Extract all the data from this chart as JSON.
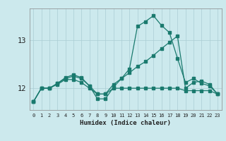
{
  "xlabel": "Humidex (Indice chaleur)",
  "background_color": "#cce9ed",
  "grid_color": "#aacdd4",
  "line_color": "#1a7a6e",
  "x_ticks": [
    0,
    1,
    2,
    3,
    4,
    5,
    6,
    7,
    8,
    9,
    10,
    11,
    12,
    13,
    14,
    15,
    16,
    17,
    18,
    19,
    20,
    21,
    22,
    23
  ],
  "y_ticks": [
    12,
    13
  ],
  "ylim": [
    11.55,
    13.65
  ],
  "xlim": [
    -0.5,
    23.5
  ],
  "series1_x": [
    0,
    1,
    2,
    3,
    4,
    5,
    6,
    7,
    8,
    9,
    10,
    11,
    12,
    13,
    14,
    15,
    16,
    17,
    18,
    19,
    20,
    21,
    22,
    23
  ],
  "series1_y": [
    11.72,
    12.0,
    12.0,
    12.08,
    12.18,
    12.18,
    12.12,
    12.0,
    11.88,
    11.88,
    12.0,
    12.0,
    12.0,
    12.0,
    12.0,
    12.0,
    12.0,
    12.0,
    12.0,
    11.95,
    11.95,
    11.95,
    11.95,
    11.88
  ],
  "series2_x": [
    0,
    1,
    2,
    3,
    4,
    5,
    6,
    7,
    8,
    9,
    10,
    11,
    12,
    13,
    14,
    15,
    16,
    17,
    18,
    19,
    20,
    21,
    22,
    23
  ],
  "series2_y": [
    11.72,
    12.0,
    12.0,
    12.1,
    12.2,
    12.25,
    12.2,
    12.05,
    11.88,
    11.88,
    12.08,
    12.2,
    12.32,
    12.45,
    12.55,
    12.68,
    12.82,
    12.95,
    13.08,
    12.0,
    12.12,
    12.15,
    12.08,
    11.88
  ],
  "series3_x": [
    0,
    1,
    2,
    3,
    4,
    5,
    6,
    7,
    8,
    9,
    10,
    11,
    12,
    13,
    14,
    15,
    16,
    17,
    18,
    19,
    20,
    21,
    22,
    23
  ],
  "series3_y": [
    11.72,
    12.0,
    12.0,
    12.1,
    12.22,
    12.28,
    12.22,
    12.05,
    11.78,
    11.78,
    12.02,
    12.2,
    12.4,
    13.28,
    13.38,
    13.5,
    13.3,
    13.15,
    12.62,
    12.12,
    12.2,
    12.1,
    12.05,
    11.88
  ]
}
